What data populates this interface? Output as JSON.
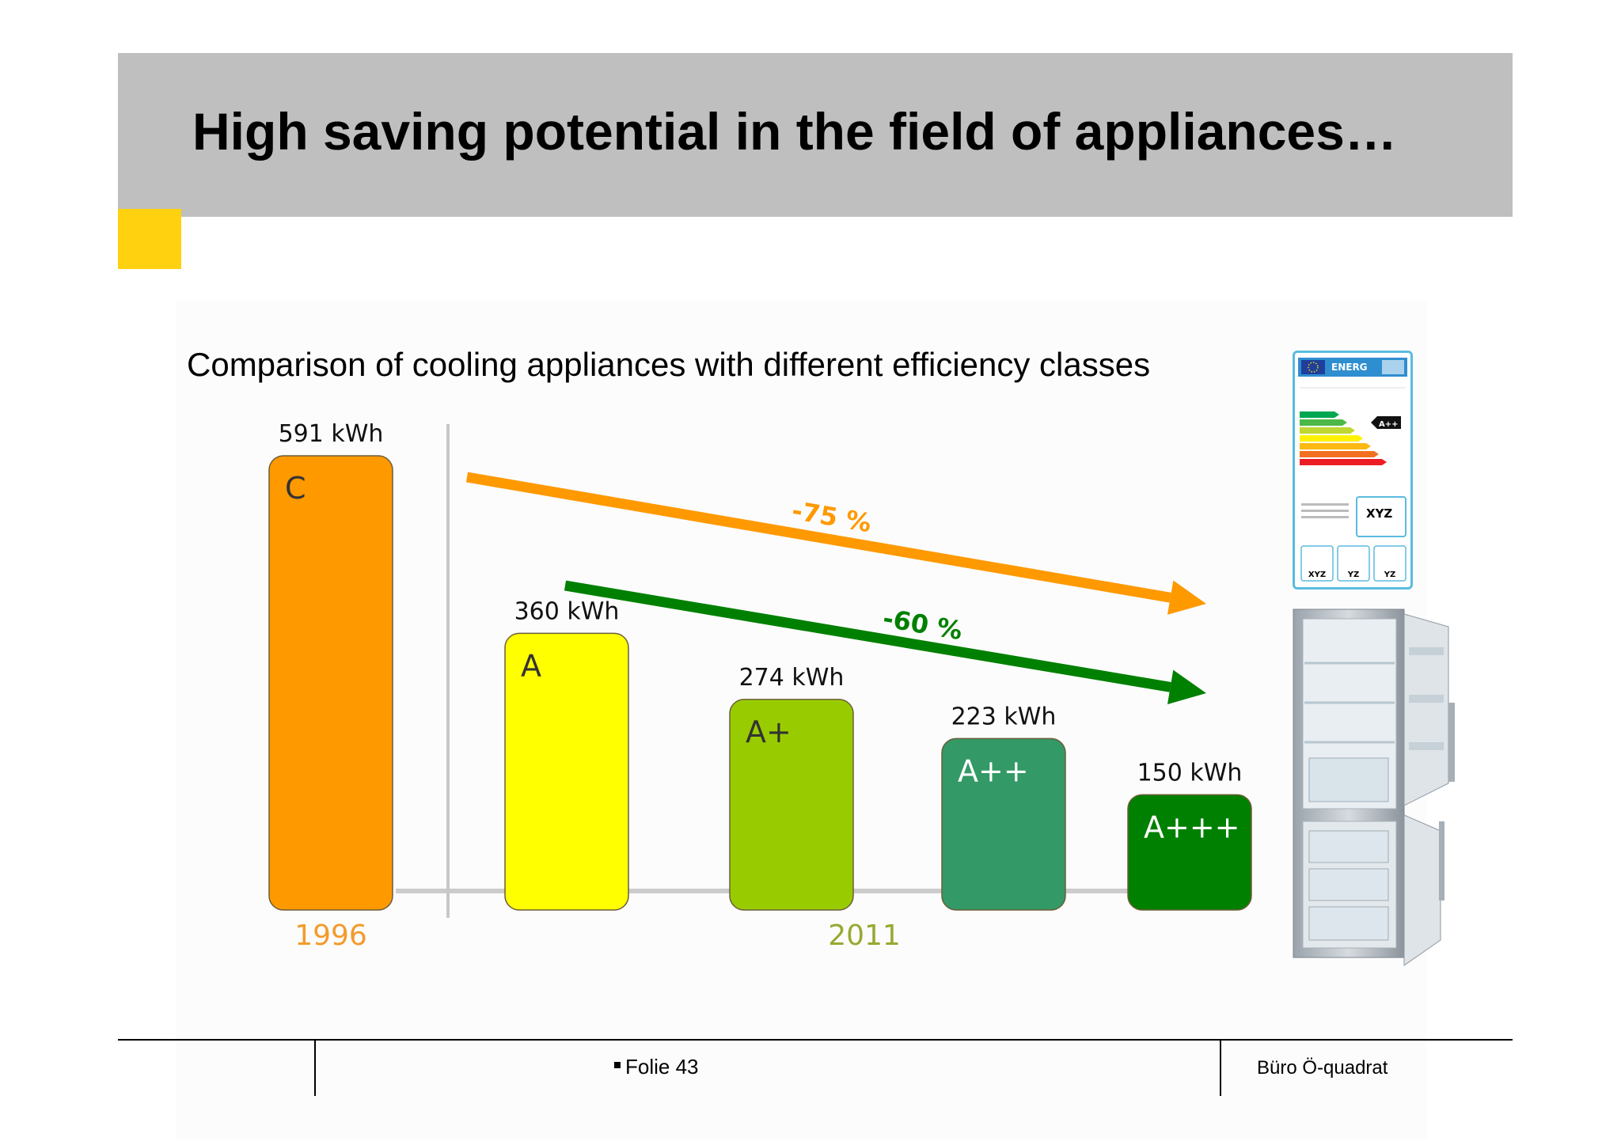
{
  "title": "High saving potential in the field of appliances…",
  "subtitle": "Comparison of cooling appliances with different efficiency classes",
  "colors": {
    "header_band": "#bfbfbf",
    "accent": "#ffd10f",
    "orange": "#ff9900",
    "yellow": "#ffff00",
    "lime": "#99cc00",
    "green": "#339966",
    "dark_green": "#008000",
    "year_1996": "#f39a2b",
    "year_2011": "#99a832"
  },
  "chart_data": {
    "type": "bar",
    "unit": "kWh",
    "categories": [
      "C",
      "A",
      "A+",
      "A++",
      "A+++"
    ],
    "values": [
      591,
      360,
      274,
      223,
      150
    ],
    "value_labels": [
      "591 kWh",
      "360 kWh",
      "274 kWh",
      "223 kWh",
      "150 kWh"
    ],
    "bar_colors": [
      "#ff9900",
      "#ffff00",
      "#99cc00",
      "#339966",
      "#008000"
    ],
    "ylim": [
      0,
      591
    ],
    "years": [
      {
        "label": "1996",
        "category": "C"
      },
      {
        "label": "2011",
        "category": "A+"
      }
    ],
    "annotations": [
      {
        "text": "-75 %",
        "color": "#ff9900"
      },
      {
        "text": "-60 %",
        "color": "#008000"
      }
    ]
  },
  "energy_label": {
    "header": "ENERG",
    "rating": "A++",
    "value": "XYZ",
    "icons": [
      "XYZ",
      "YZ",
      "YZ"
    ]
  },
  "footer": {
    "slide": "Folie 43",
    "org": "Büro Ö-quadrat"
  }
}
